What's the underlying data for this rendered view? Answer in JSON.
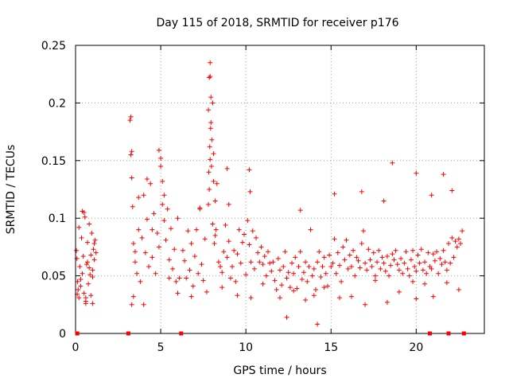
{
  "chart_data": {
    "type": "scatter",
    "title": "Day 115 of 2018, SRMTID for receiver p176",
    "xlabel": "GPS time / hours",
    "ylabel": "SRMTID / TECUs",
    "xlim": [
      0,
      24
    ],
    "ylim": [
      0,
      0.25
    ],
    "xticks": [
      0,
      5,
      10,
      15,
      20
    ],
    "xtick_labels": [
      "0",
      "5",
      "10",
      "15",
      "20"
    ],
    "yticks": [
      0,
      0.05,
      0.1,
      0.15,
      0.2,
      0.25
    ],
    "ytick_labels": [
      "0",
      "0.05",
      "0.1",
      "0.15",
      "0.2",
      "0.25"
    ],
    "grid": true,
    "marker": "+",
    "series_color": "#ff0000",
    "baseline_markers_x": [
      0.1,
      3.1,
      6.2,
      20.8,
      21.9,
      22.8
    ],
    "series": [
      {
        "name": "SRMTID",
        "x": [
          0.05,
          0.08,
          0.12,
          0.15,
          0.2,
          0.25,
          0.3,
          0.35,
          0.4,
          0.45,
          0.5,
          0.55,
          0.6,
          0.65,
          0.7,
          0.75,
          0.8,
          0.85,
          0.9,
          0.95,
          1.0,
          1.05,
          1.1,
          1.15,
          1.2,
          0.3,
          0.5,
          0.6,
          0.7,
          0.9,
          1.0,
          1.1,
          0.4,
          0.2,
          0.8,
          3.2,
          3.25,
          3.3,
          3.35,
          3.4,
          3.5,
          3.6,
          3.7,
          3.8,
          3.9,
          4.0,
          4.1,
          4.2,
          4.3,
          4.4,
          4.5,
          4.6,
          4.7,
          4.8,
          4.9,
          5.0,
          5.1,
          5.2,
          5.3,
          5.4,
          5.5,
          5.6,
          5.7,
          5.8,
          5.9,
          6.0,
          6.1,
          3.25,
          3.3,
          3.4,
          3.3,
          4.9,
          5.0,
          5.1,
          5.2,
          3.7,
          4.2,
          6.3,
          6.4,
          6.5,
          6.6,
          6.7,
          6.8,
          6.9,
          7.0,
          7.1,
          7.2,
          7.3,
          7.4,
          7.5,
          7.6,
          7.7,
          7.8,
          7.82,
          7.85,
          7.88,
          7.9,
          7.93,
          7.95,
          7.98,
          8.0,
          8.05,
          8.1,
          8.15,
          8.2,
          8.25,
          8.3,
          7.85,
          7.9,
          7.95,
          8.05,
          7.8,
          7.9,
          8.1,
          8.2,
          8.4,
          8.5,
          8.6,
          8.7,
          8.8,
          8.9,
          9.0,
          9.1,
          9.2,
          9.3,
          9.4,
          9.5,
          9.6,
          9.7,
          9.8,
          9.9,
          10.0,
          10.1,
          10.2,
          10.3,
          10.4,
          10.5,
          10.6,
          10.7,
          10.8,
          10.9,
          11.0,
          11.1,
          11.2,
          11.3,
          11.4,
          11.5,
          9.0,
          10.2,
          10.25,
          8.9,
          11.6,
          11.7,
          11.8,
          11.9,
          12.0,
          12.1,
          12.2,
          12.3,
          12.4,
          12.5,
          12.6,
          12.7,
          12.8,
          12.9,
          13.0,
          13.1,
          13.2,
          13.3,
          13.4,
          13.5,
          13.6,
          13.7,
          13.8,
          13.9,
          14.0,
          14.1,
          14.2,
          14.3,
          14.4,
          14.5,
          14.6,
          14.7,
          14.8,
          14.9,
          15.0,
          12.4,
          14.2,
          13.2,
          15.1,
          15.2,
          15.3,
          15.4,
          15.5,
          15.6,
          15.7,
          15.8,
          15.9,
          16.0,
          16.1,
          16.2,
          16.3,
          16.4,
          16.5,
          16.6,
          16.7,
          16.8,
          16.9,
          17.0,
          17.1,
          17.2,
          17.3,
          17.4,
          17.5,
          17.6,
          17.7,
          17.8,
          17.9,
          18.0,
          18.1,
          18.2,
          18.3,
          18.4,
          18.5,
          18.6,
          18.7,
          18.8,
          18.9,
          19.0,
          15.2,
          16.8,
          18.1,
          18.6,
          19.1,
          19.2,
          19.3,
          19.4,
          19.5,
          19.6,
          19.7,
          19.8,
          19.9,
          20.0,
          20.1,
          20.2,
          20.3,
          20.4,
          20.5,
          20.6,
          20.7,
          20.8,
          20.9,
          21.0,
          21.1,
          21.2,
          21.3,
          21.4,
          21.5,
          21.6,
          21.7,
          21.8,
          21.9,
          22.0,
          22.1,
          22.2,
          22.3,
          22.4,
          22.5,
          22.6,
          22.7,
          20.0,
          20.0,
          20.9,
          21.6,
          22.1,
          0.1,
          0.6,
          1.0,
          3.5,
          4.0,
          4.5,
          5.5,
          6.0,
          6.8,
          7.3,
          8.6,
          9.5,
          10.3,
          11.0,
          12.0,
          12.8,
          13.5,
          14.0,
          14.6,
          15.5,
          16.2,
          17.0,
          17.6,
          18.3,
          19.0,
          19.8,
          20.5,
          21.0,
          21.8,
          22.5
        ],
        "y": [
          0.072,
          0.065,
          0.045,
          0.038,
          0.092,
          0.058,
          0.041,
          0.083,
          0.052,
          0.067,
          0.035,
          0.101,
          0.028,
          0.06,
          0.079,
          0.043,
          0.095,
          0.051,
          0.068,
          0.087,
          0.055,
          0.073,
          0.064,
          0.081,
          0.07,
          0.047,
          0.105,
          0.026,
          0.062,
          0.033,
          0.049,
          0.078,
          0.106,
          0.031,
          0.057,
          0.185,
          0.155,
          0.135,
          0.11,
          0.078,
          0.062,
          0.052,
          0.09,
          0.045,
          0.083,
          0.12,
          0.07,
          0.099,
          0.058,
          0.13,
          0.066,
          0.104,
          0.052,
          0.087,
          0.075,
          0.145,
          0.112,
          0.098,
          0.081,
          0.108,
          0.064,
          0.091,
          0.056,
          0.073,
          0.045,
          0.1,
          0.048,
          0.188,
          0.158,
          0.032,
          0.025,
          0.159,
          0.152,
          0.132,
          0.12,
          0.118,
          0.134,
          0.072,
          0.063,
          0.048,
          0.089,
          0.055,
          0.078,
          0.041,
          0.067,
          0.09,
          0.052,
          0.108,
          0.06,
          0.046,
          0.082,
          0.036,
          0.112,
          0.14,
          0.125,
          0.162,
          0.151,
          0.178,
          0.183,
          0.145,
          0.168,
          0.095,
          0.132,
          0.078,
          0.115,
          0.09,
          0.13,
          0.222,
          0.235,
          0.205,
          0.2,
          0.194,
          0.223,
          0.156,
          0.085,
          0.062,
          0.058,
          0.053,
          0.071,
          0.094,
          0.066,
          0.08,
          0.048,
          0.058,
          0.072,
          0.045,
          0.069,
          0.09,
          0.061,
          0.079,
          0.086,
          0.051,
          0.098,
          0.077,
          0.062,
          0.089,
          0.056,
          0.083,
          0.07,
          0.062,
          0.075,
          0.06,
          0.067,
          0.05,
          0.071,
          0.061,
          0.054,
          0.112,
          0.142,
          0.123,
          0.143,
          0.062,
          0.046,
          0.038,
          0.065,
          0.055,
          0.042,
          0.058,
          0.071,
          0.048,
          0.053,
          0.04,
          0.061,
          0.052,
          0.066,
          0.039,
          0.058,
          0.071,
          0.047,
          0.053,
          0.062,
          0.045,
          0.058,
          0.09,
          0.05,
          0.056,
          0.038,
          0.062,
          0.071,
          0.049,
          0.058,
          0.066,
          0.052,
          0.041,
          0.068,
          0.058,
          0.014,
          0.008,
          0.107,
          0.061,
          0.082,
          0.052,
          0.07,
          0.059,
          0.045,
          0.075,
          0.064,
          0.081,
          0.056,
          0.068,
          0.058,
          0.072,
          0.05,
          0.066,
          0.063,
          0.057,
          0.078,
          0.089,
          0.061,
          0.055,
          0.073,
          0.064,
          0.058,
          0.07,
          0.05,
          0.062,
          0.072,
          0.056,
          0.066,
          0.061,
          0.054,
          0.067,
          0.05,
          0.059,
          0.069,
          0.064,
          0.072,
          0.06,
          0.055,
          0.121,
          0.123,
          0.115,
          0.148,
          0.065,
          0.052,
          0.061,
          0.071,
          0.056,
          0.05,
          0.064,
          0.072,
          0.058,
          0.054,
          0.068,
          0.061,
          0.073,
          0.055,
          0.062,
          0.052,
          0.07,
          0.058,
          0.056,
          0.069,
          0.063,
          0.071,
          0.052,
          0.065,
          0.06,
          0.072,
          0.062,
          0.055,
          0.078,
          0.061,
          0.083,
          0.066,
          0.08,
          0.075,
          0.082,
          0.078,
          0.089,
          0.139,
          0.03,
          0.12,
          0.138,
          0.124,
          0.034,
          0.031,
          0.026,
          0.071,
          0.025,
          0.09,
          0.048,
          0.035,
          0.032,
          0.109,
          0.04,
          0.033,
          0.031,
          0.043,
          0.031,
          0.037,
          0.029,
          0.033,
          0.04,
          0.031,
          0.032,
          0.025,
          0.046,
          0.027,
          0.036,
          0.045,
          0.043,
          0.032,
          0.044,
          0.038
        ]
      }
    ]
  }
}
